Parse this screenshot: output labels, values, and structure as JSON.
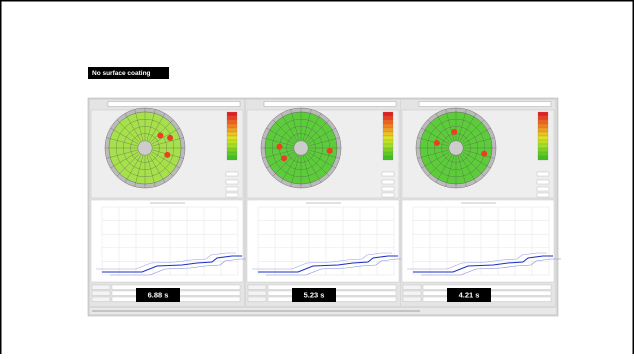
{
  "slide": {
    "label": "No surface coating",
    "panels": [
      {
        "time": "6.88 s"
      },
      {
        "time": "5.23 s"
      },
      {
        "time": "4.21 s"
      }
    ]
  }
}
